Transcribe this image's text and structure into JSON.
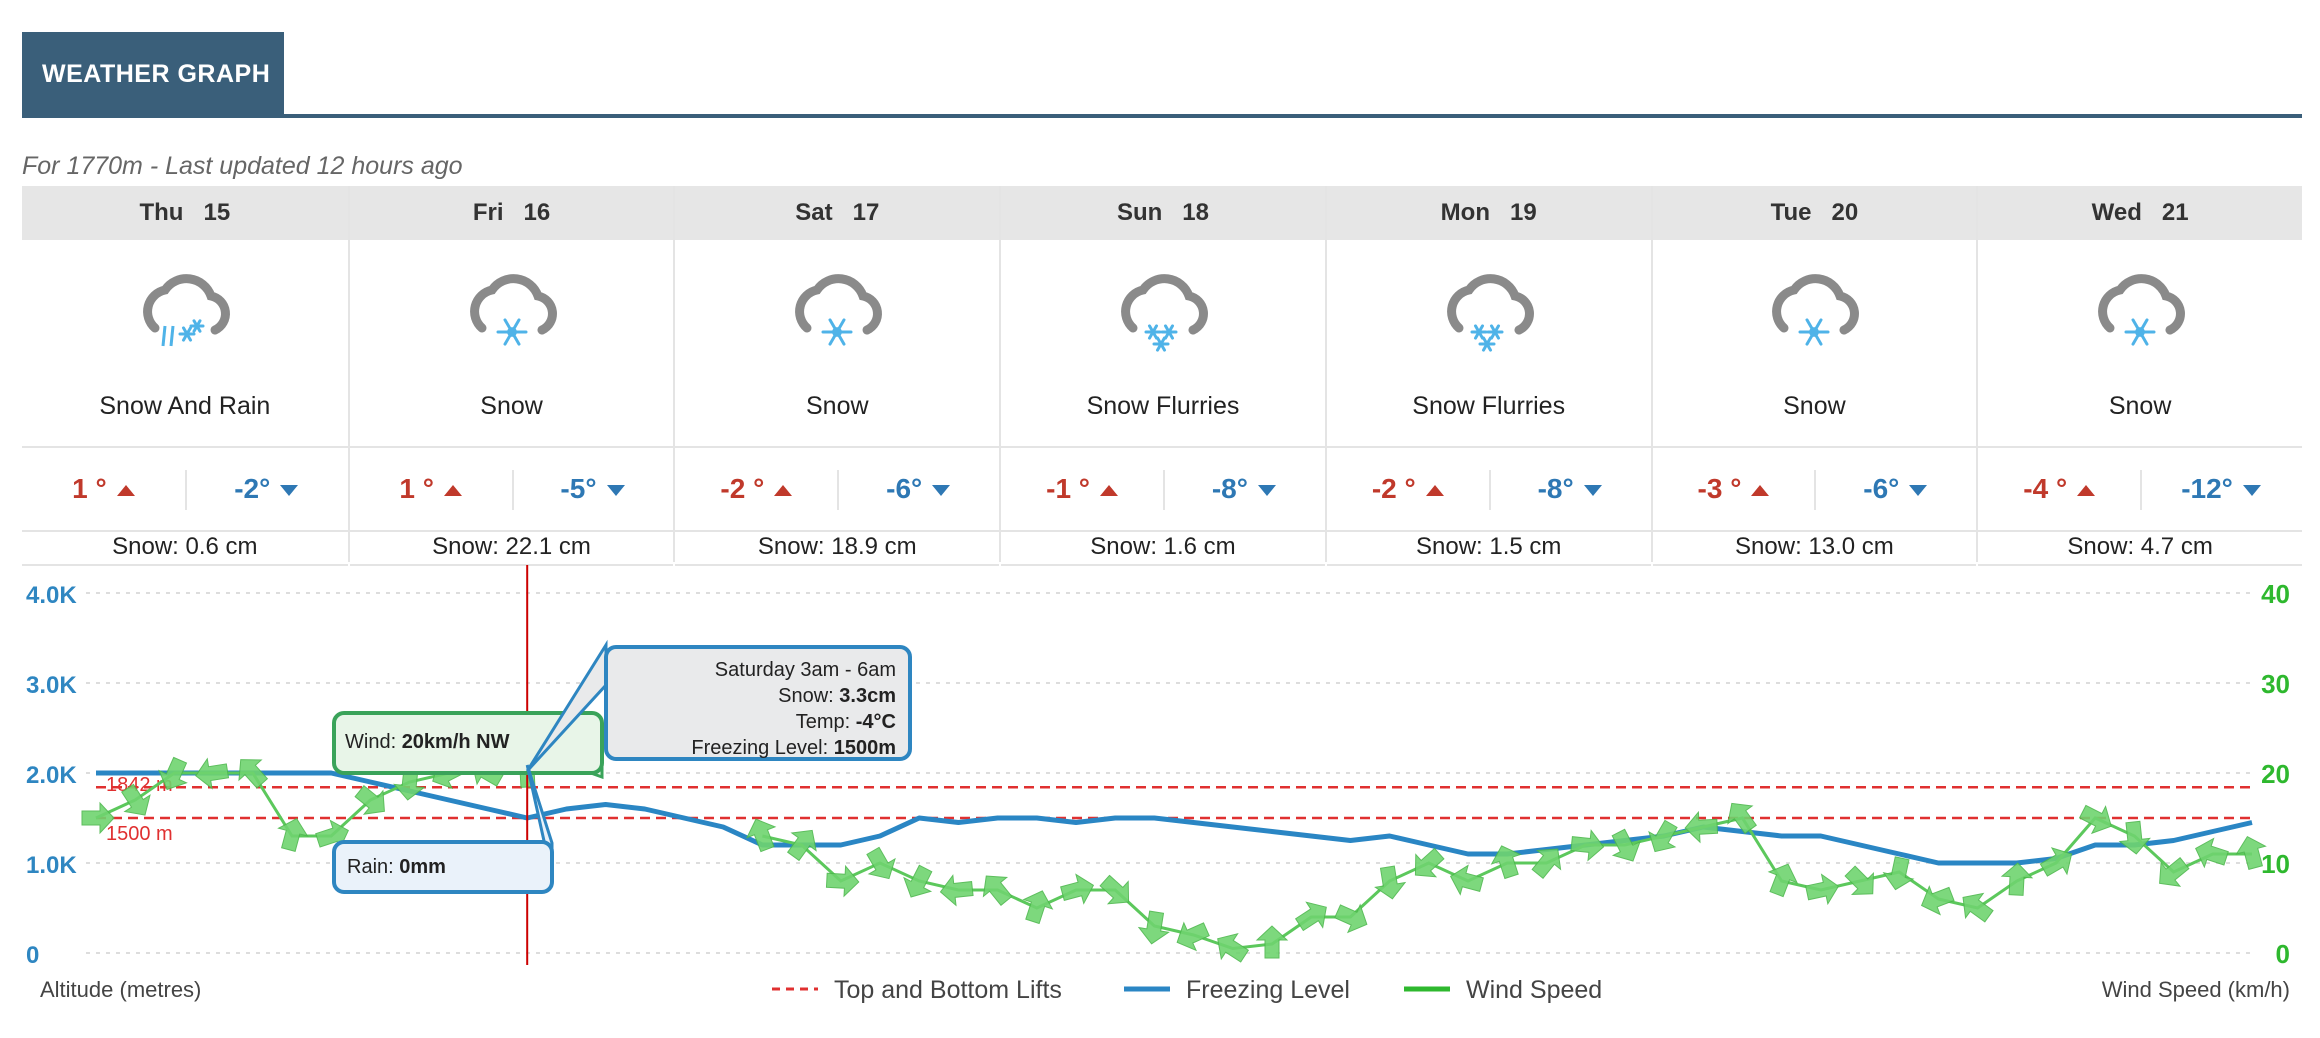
{
  "header": {
    "title": "WEATHER GRAPH"
  },
  "subtitle": "For 1770m - Last updated 12 hours ago",
  "days": [
    {
      "day": "Thu",
      "date": "15",
      "icon": "snow-and-rain-icon",
      "condition": "Snow And Rain",
      "high": "1 °",
      "low": "-2°",
      "snow": "Snow: 0.6 cm"
    },
    {
      "day": "Fri",
      "date": "16",
      "icon": "snow-icon",
      "condition": "Snow",
      "high": "1 °",
      "low": "-5°",
      "snow": "Snow: 22.1 cm"
    },
    {
      "day": "Sat",
      "date": "17",
      "icon": "snow-icon",
      "condition": "Snow",
      "high": "-2 °",
      "low": "-6°",
      "snow": "Snow: 18.9 cm"
    },
    {
      "day": "Sun",
      "date": "18",
      "icon": "snow-flurries-icon",
      "condition": "Snow Flurries",
      "high": "-1 °",
      "low": "-8°",
      "snow": "Snow: 1.6 cm"
    },
    {
      "day": "Mon",
      "date": "19",
      "icon": "snow-flurries-icon",
      "condition": "Snow Flurries",
      "high": "-2 °",
      "low": "-8°",
      "snow": "Snow: 1.5 cm"
    },
    {
      "day": "Tue",
      "date": "20",
      "icon": "snow-icon",
      "condition": "Snow",
      "high": "-3 °",
      "low": "-6°",
      "snow": "Snow: 13.0 cm"
    },
    {
      "day": "Wed",
      "date": "21",
      "icon": "snow-icon",
      "condition": "Snow",
      "high": "-4 °",
      "low": "-12°",
      "snow": "Snow: 4.7 cm"
    }
  ],
  "colors": {
    "header": "#3a5f7a",
    "high": "#c0392b",
    "low": "#2e78b4",
    "freezing": "#2a86c4",
    "wind": "#2eb82e",
    "lifts": "#e03030",
    "cursor": "#cc0000"
  },
  "chart_data": {
    "type": "line",
    "left_axis": {
      "label": "Altitude (metres)",
      "ticks": [
        "0",
        "1.0K",
        "2.0K",
        "3.0K",
        "4.0K"
      ],
      "ylim": [
        0,
        4000
      ]
    },
    "right_axis": {
      "label": "Wind Speed (km/h)",
      "ticks": [
        "0",
        "10",
        "20",
        "30",
        "40"
      ],
      "ylim": [
        0,
        40
      ]
    },
    "grid": true,
    "lifts": [
      {
        "label": "1842 m",
        "value": 1842
      },
      {
        "label": "1500 m",
        "value": 1500
      }
    ],
    "x": [
      0,
      1,
      2,
      3,
      4,
      5,
      6,
      7,
      8,
      9,
      10,
      11,
      12,
      13,
      14,
      15,
      16,
      17,
      18,
      19,
      20,
      21,
      22,
      23,
      24,
      25,
      26,
      27,
      28,
      29,
      30,
      31,
      32,
      33,
      34,
      35,
      36,
      37,
      38,
      39,
      40,
      41,
      42,
      43,
      44,
      45,
      46,
      47,
      48,
      49,
      50,
      51,
      52,
      53,
      54,
      55
    ],
    "series": [
      {
        "name": "Freezing Level",
        "axis": "left",
        "values": [
          2000,
          2000,
          2000,
          2000,
          2000,
          2000,
          2000,
          1900,
          1800,
          1700,
          1600,
          1500,
          1600,
          1650,
          1600,
          1500,
          1400,
          1200,
          1200,
          1200,
          1300,
          1500,
          1450,
          1500,
          1500,
          1450,
          1500,
          1500,
          1450,
          1400,
          1350,
          1300,
          1250,
          1300,
          1200,
          1100,
          1100,
          1150,
          1200,
          1250,
          1300,
          1400,
          1350,
          1300,
          1300,
          1200,
          1100,
          1000,
          1000,
          1000,
          1050,
          1200,
          1200,
          1250,
          1350,
          1450
        ]
      },
      {
        "name": "Wind Speed",
        "axis": "right",
        "values": [
          15,
          17,
          20,
          20,
          20,
          13,
          13,
          17,
          19,
          20,
          20,
          20,
          null,
          null,
          null,
          null,
          null,
          13,
          12,
          8,
          10,
          8,
          7,
          7,
          5,
          7,
          7,
          3,
          2,
          0.5,
          1,
          4,
          4,
          8,
          10,
          8,
          10,
          10,
          12,
          12,
          13,
          14,
          15,
          8,
          7,
          8,
          9,
          6,
          5,
          8,
          10,
          15,
          13,
          9,
          11,
          11
        ]
      }
    ],
    "legend": [
      "Top and Bottom Lifts",
      "Freezing Level",
      "Wind Speed"
    ],
    "legend_position": "bottom",
    "tooltip": {
      "title": "Saturday 3am - 6am",
      "snow_label": "Snow: ",
      "snow_value": "3.3cm",
      "temp_label": "Temp: ",
      "temp_value": "-4°C",
      "freezing_label": "Freezing Level: ",
      "freezing_value": "1500m",
      "wind_label": "Wind: ",
      "wind_value": "20km/h NW",
      "rain_label": "Rain: ",
      "rain_value": "0mm",
      "x": 11
    }
  }
}
